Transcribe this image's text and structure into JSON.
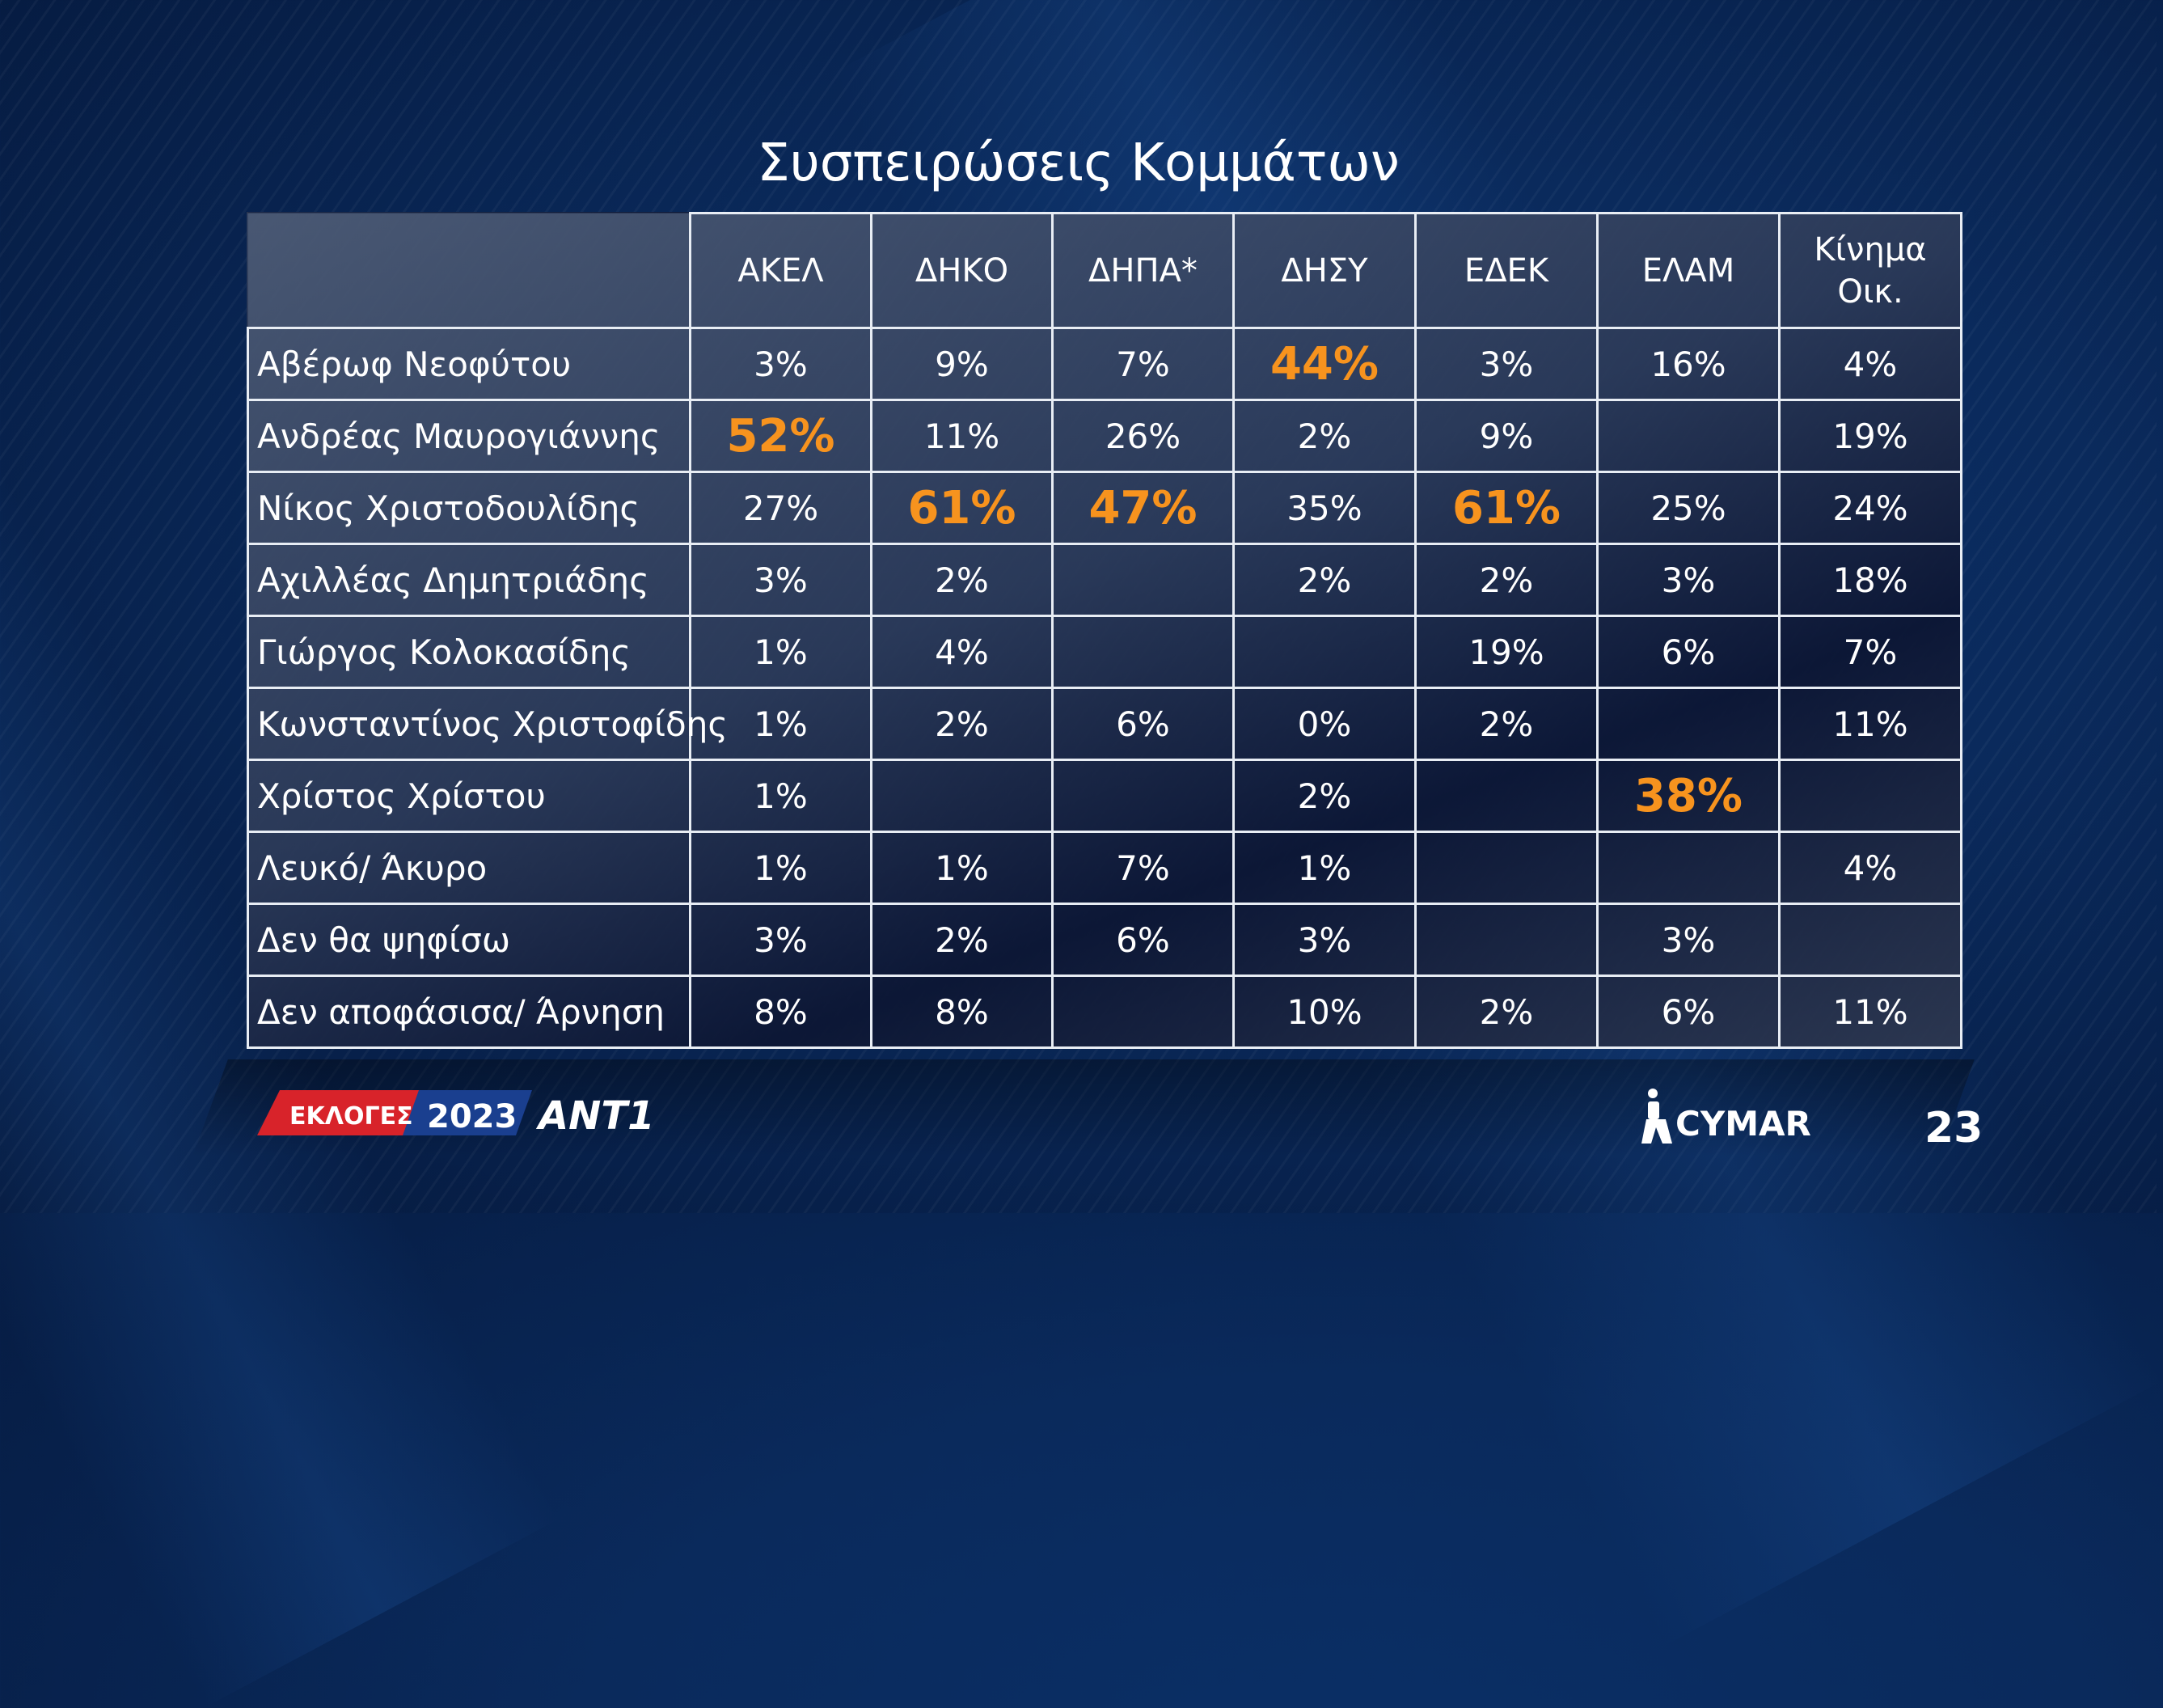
{
  "title": "Συσπειρώσεις Κομμάτων",
  "page_number": "23",
  "colors": {
    "highlight": "#f7931e",
    "background": "#0a2a5c",
    "grid": "#e8edf4"
  },
  "logos": {
    "elections_text": "ΕΚΛΟΓΕΣ",
    "year": "2023",
    "channel": "ANT1",
    "pollster": "CYMAR"
  },
  "chart_data": {
    "type": "table",
    "title": "Συσπειρώσεις Κομμάτων",
    "columns": [
      "ΑΚΕΛ",
      "ΔΗΚΟ",
      "ΔΗΠΑ*",
      "ΔΗΣΥ",
      "ΕΔΕΚ",
      "ΕΛΑΜ",
      "Κίνημα Οικ."
    ],
    "columns_display": [
      [
        "ΑΚΕΛ"
      ],
      [
        "ΔΗΚΟ"
      ],
      [
        "ΔΗΠΑ*"
      ],
      [
        "ΔΗΣΥ"
      ],
      [
        "ΕΔΕΚ"
      ],
      [
        "ΕΛΑΜ"
      ],
      [
        "Κίνημα",
        "Οικ."
      ]
    ],
    "rows": [
      {
        "label": "Αβέρωφ Νεοφύτου",
        "values": [
          "3%",
          "9%",
          "7%",
          "44%",
          "3%",
          "16%",
          "4%"
        ],
        "highlight": [
          false,
          false,
          false,
          true,
          false,
          false,
          false
        ]
      },
      {
        "label": "Ανδρέας Μαυρογιάννης",
        "values": [
          "52%",
          "11%",
          "26%",
          "2%",
          "9%",
          "",
          "19%"
        ],
        "highlight": [
          true,
          false,
          false,
          false,
          false,
          false,
          false
        ]
      },
      {
        "label": "Νίκος Χριστοδουλίδης",
        "values": [
          "27%",
          "61%",
          "47%",
          "35%",
          "61%",
          "25%",
          "24%"
        ],
        "highlight": [
          false,
          true,
          true,
          false,
          true,
          false,
          false
        ]
      },
      {
        "label": "Αχιλλέας Δημητριάδης",
        "values": [
          "3%",
          "2%",
          "",
          "2%",
          "2%",
          "3%",
          "18%"
        ],
        "highlight": [
          false,
          false,
          false,
          false,
          false,
          false,
          false
        ]
      },
      {
        "label": "Γιώργος Κολοκασίδης",
        "values": [
          "1%",
          "4%",
          "",
          "",
          "19%",
          "6%",
          "7%"
        ],
        "highlight": [
          false,
          false,
          false,
          false,
          false,
          false,
          false
        ]
      },
      {
        "label": "Κωνσταντίνος Χριστοφίδης",
        "values": [
          "1%",
          "2%",
          "6%",
          "0%",
          "2%",
          "",
          "11%"
        ],
        "highlight": [
          false,
          false,
          false,
          false,
          false,
          false,
          false
        ]
      },
      {
        "label": "Χρίστος Χρίστου",
        "values": [
          "1%",
          "",
          "",
          "2%",
          "",
          "38%",
          ""
        ],
        "highlight": [
          false,
          false,
          false,
          false,
          false,
          true,
          false
        ]
      },
      {
        "label": "Λευκό/ Άκυρο",
        "values": [
          "1%",
          "1%",
          "7%",
          "1%",
          "",
          "",
          "4%"
        ],
        "highlight": [
          false,
          false,
          false,
          false,
          false,
          false,
          false
        ]
      },
      {
        "label": "Δεν θα ψηφίσω",
        "values": [
          "3%",
          "2%",
          "6%",
          "3%",
          "",
          "3%",
          ""
        ],
        "highlight": [
          false,
          false,
          false,
          false,
          false,
          false,
          false
        ]
      },
      {
        "label": "Δεν αποφάσισα/ Άρνηση",
        "values": [
          "8%",
          "8%",
          "",
          "10%",
          "2%",
          "6%",
          "11%"
        ],
        "highlight": [
          false,
          false,
          false,
          false,
          false,
          false,
          false
        ]
      }
    ]
  }
}
